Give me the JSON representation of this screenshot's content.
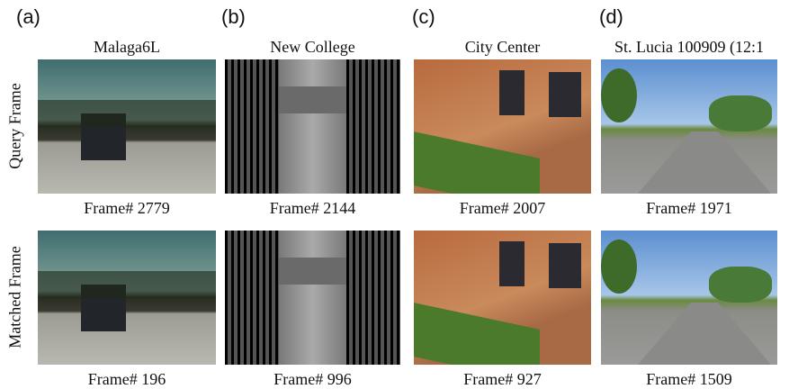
{
  "row_labels": [
    "Query Frame",
    "Matched Frame"
  ],
  "panels": [
    {
      "label": "(a)",
      "title": "Malaga6L",
      "query_caption": "Frame# 2779",
      "matched_caption": "Frame# 196"
    },
    {
      "label": "(b)",
      "title": "New College",
      "query_caption": "Frame# 2144",
      "matched_caption": "Frame# 996"
    },
    {
      "label": "(c)",
      "title": "City Center",
      "query_caption": "Frame# 2007",
      "matched_caption": "Frame# 927"
    },
    {
      "label": "(d)",
      "title": "St. Lucia 100909 (12:1",
      "query_caption": "Frame# 1971",
      "matched_caption": "Frame# 1509"
    }
  ]
}
